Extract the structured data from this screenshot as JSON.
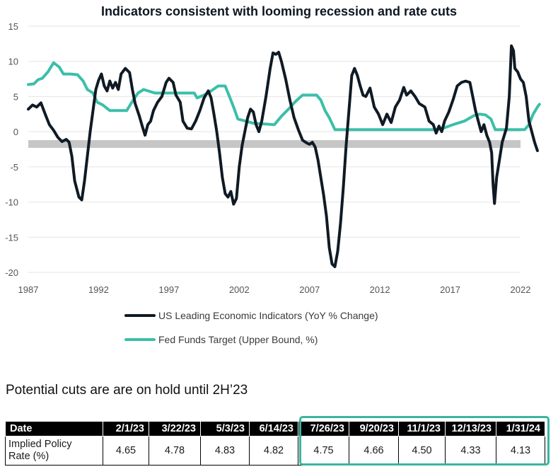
{
  "chart_data": {
    "type": "line",
    "title": "Indicators consistent with looming recession and rate cuts",
    "xlabel": "",
    "ylabel": "",
    "xlim": [
      1987,
      2022
    ],
    "ylim": [
      -20,
      15
    ],
    "x_ticks": [
      "1987",
      "1992",
      "1997",
      "2002",
      "2007",
      "2012",
      "2017",
      "2022"
    ],
    "y_ticks": [
      "15",
      "10",
      "5",
      "0",
      "-5",
      "-10",
      "-15",
      "-20"
    ],
    "recession_band": [
      -2.3,
      -1.2
    ],
    "colors": {
      "lei": "#0f1a24",
      "fed": "#3bbfa8",
      "band": "#c6c6c6"
    },
    "series": [
      {
        "name": "US Leading Economic Indicators (YoY % Change)",
        "color": "#0f1a24",
        "points": [
          [
            1987.0,
            3.2
          ],
          [
            1987.3,
            3.8
          ],
          [
            1987.6,
            3.5
          ],
          [
            1987.9,
            4.1
          ],
          [
            1988.2,
            2.5
          ],
          [
            1988.5,
            1.0
          ],
          [
            1988.8,
            0.2
          ],
          [
            1989.1,
            -0.8
          ],
          [
            1989.4,
            -1.4
          ],
          [
            1989.7,
            -1.1
          ],
          [
            1989.9,
            -1.5
          ],
          [
            1990.1,
            -3.5
          ],
          [
            1990.3,
            -7.0
          ],
          [
            1990.6,
            -9.3
          ],
          [
            1990.8,
            -9.7
          ],
          [
            1991.0,
            -7.0
          ],
          [
            1991.2,
            -3.5
          ],
          [
            1991.4,
            0.0
          ],
          [
            1991.6,
            3.0
          ],
          [
            1991.8,
            6.0
          ],
          [
            1992.0,
            7.3
          ],
          [
            1992.2,
            8.2
          ],
          [
            1992.4,
            6.5
          ],
          [
            1992.6,
            5.8
          ],
          [
            1992.8,
            7.2
          ],
          [
            1993.0,
            6.2
          ],
          [
            1993.2,
            7.0
          ],
          [
            1993.4,
            6.0
          ],
          [
            1993.6,
            8.2
          ],
          [
            1993.9,
            9.0
          ],
          [
            1994.2,
            8.4
          ],
          [
            1994.4,
            6.0
          ],
          [
            1994.6,
            4.0
          ],
          [
            1994.9,
            2.2
          ],
          [
            1995.1,
            0.8
          ],
          [
            1995.3,
            -0.5
          ],
          [
            1995.5,
            1.0
          ],
          [
            1995.7,
            1.5
          ],
          [
            1995.9,
            3.0
          ],
          [
            1996.2,
            4.2
          ],
          [
            1996.5,
            5.0
          ],
          [
            1996.8,
            7.0
          ],
          [
            1997.0,
            7.6
          ],
          [
            1997.3,
            7.0
          ],
          [
            1997.5,
            5.2
          ],
          [
            1997.8,
            4.2
          ],
          [
            1998.0,
            1.5
          ],
          [
            1998.3,
            0.5
          ],
          [
            1998.6,
            0.4
          ],
          [
            1998.9,
            1.5
          ],
          [
            1999.2,
            3.0
          ],
          [
            1999.5,
            4.8
          ],
          [
            1999.8,
            5.8
          ],
          [
            2000.0,
            4.8
          ],
          [
            2000.2,
            2.5
          ],
          [
            2000.4,
            0.0
          ],
          [
            2000.6,
            -3.0
          ],
          [
            2000.8,
            -6.5
          ],
          [
            2001.0,
            -8.8
          ],
          [
            2001.2,
            -9.3
          ],
          [
            2001.4,
            -8.5
          ],
          [
            2001.6,
            -10.3
          ],
          [
            2001.8,
            -9.5
          ],
          [
            2002.0,
            -5.0
          ],
          [
            2002.2,
            -2.0
          ],
          [
            2002.4,
            0.0
          ],
          [
            2002.6,
            2.0
          ],
          [
            2002.8,
            3.2
          ],
          [
            2003.0,
            2.8
          ],
          [
            2003.2,
            1.0
          ],
          [
            2003.4,
            0.0
          ],
          [
            2003.6,
            1.5
          ],
          [
            2003.9,
            5.0
          ],
          [
            2004.2,
            9.0
          ],
          [
            2004.4,
            11.2
          ],
          [
            2004.6,
            11.0
          ],
          [
            2004.8,
            11.3
          ],
          [
            2005.0,
            10.0
          ],
          [
            2005.3,
            7.5
          ],
          [
            2005.6,
            4.5
          ],
          [
            2005.9,
            2.0
          ],
          [
            2006.2,
            0.3
          ],
          [
            2006.5,
            -1.2
          ],
          [
            2006.8,
            -1.6
          ],
          [
            2007.0,
            -1.8
          ],
          [
            2007.2,
            -1.5
          ],
          [
            2007.4,
            -2.2
          ],
          [
            2007.6,
            -4.0
          ],
          [
            2007.8,
            -6.5
          ],
          [
            2008.0,
            -9.0
          ],
          [
            2008.2,
            -12.0
          ],
          [
            2008.4,
            -16.5
          ],
          [
            2008.6,
            -18.8
          ],
          [
            2008.8,
            -19.2
          ],
          [
            2009.0,
            -17.0
          ],
          [
            2009.2,
            -13.0
          ],
          [
            2009.4,
            -8.0
          ],
          [
            2009.6,
            -2.0
          ],
          [
            2009.8,
            3.0
          ],
          [
            2010.0,
            8.0
          ],
          [
            2010.2,
            9.0
          ],
          [
            2010.4,
            8.0
          ],
          [
            2010.6,
            6.5
          ],
          [
            2010.8,
            5.2
          ],
          [
            2011.0,
            5.0
          ],
          [
            2011.3,
            6.2
          ],
          [
            2011.6,
            3.5
          ],
          [
            2011.9,
            2.5
          ],
          [
            2012.2,
            1.0
          ],
          [
            2012.5,
            2.5
          ],
          [
            2012.8,
            1.3
          ],
          [
            2013.1,
            3.5
          ],
          [
            2013.4,
            4.5
          ],
          [
            2013.7,
            6.3
          ],
          [
            2013.9,
            5.2
          ],
          [
            2014.2,
            5.8
          ],
          [
            2014.5,
            5.0
          ],
          [
            2014.8,
            4.0
          ],
          [
            2015.2,
            3.5
          ],
          [
            2015.5,
            1.5
          ],
          [
            2015.8,
            1.0
          ],
          [
            2016.0,
            -0.2
          ],
          [
            2016.2,
            0.8
          ],
          [
            2016.4,
            0.0
          ],
          [
            2016.6,
            1.5
          ],
          [
            2016.9,
            2.8
          ],
          [
            2017.2,
            4.5
          ],
          [
            2017.5,
            6.5
          ],
          [
            2017.8,
            7.0
          ],
          [
            2018.1,
            7.2
          ],
          [
            2018.4,
            7.0
          ],
          [
            2018.6,
            5.0
          ],
          [
            2018.8,
            3.0
          ],
          [
            2019.0,
            1.5
          ],
          [
            2019.2,
            0.0
          ],
          [
            2019.4,
            1.0
          ],
          [
            2019.6,
            -0.5
          ],
          [
            2019.8,
            -1.5
          ],
          [
            2019.95,
            -3.0
          ],
          [
            2020.05,
            -7.5
          ],
          [
            2020.15,
            -10.2
          ],
          [
            2020.3,
            -6.5
          ],
          [
            2020.5,
            -4.0
          ],
          [
            2020.7,
            -1.5
          ],
          [
            2021.0,
            0.5
          ],
          [
            2021.2,
            5.0
          ],
          [
            2021.35,
            12.2
          ],
          [
            2021.5,
            11.5
          ],
          [
            2021.6,
            9.0
          ],
          [
            2021.8,
            8.5
          ],
          [
            2022.0,
            7.5
          ],
          [
            2022.2,
            7.0
          ],
          [
            2022.4,
            5.0
          ],
          [
            2022.6,
            1.5
          ],
          [
            2022.8,
            0.0
          ],
          [
            2023.0,
            -1.5
          ],
          [
            2023.2,
            -2.7
          ]
        ]
      },
      {
        "name": "Fed Funds Target (Upper Bound, %)",
        "color": "#3bbfa8",
        "points": [
          [
            1987.0,
            6.7
          ],
          [
            1987.4,
            6.8
          ],
          [
            1987.7,
            7.4
          ],
          [
            1988.0,
            7.6
          ],
          [
            1988.4,
            8.5
          ],
          [
            1988.8,
            9.8
          ],
          [
            1989.2,
            9.2
          ],
          [
            1989.5,
            8.2
          ],
          [
            1990.0,
            8.2
          ],
          [
            1990.5,
            8.1
          ],
          [
            1990.9,
            7.2
          ],
          [
            1991.2,
            6.0
          ],
          [
            1991.6,
            5.5
          ],
          [
            1991.9,
            4.2
          ],
          [
            1992.3,
            3.8
          ],
          [
            1992.8,
            3.0
          ],
          [
            1994.0,
            3.0
          ],
          [
            1994.3,
            4.0
          ],
          [
            1994.8,
            5.5
          ],
          [
            1995.2,
            6.0
          ],
          [
            1996.0,
            5.5
          ],
          [
            1997.5,
            5.5
          ],
          [
            1998.8,
            5.5
          ],
          [
            1999.0,
            4.8
          ],
          [
            1999.5,
            5.2
          ],
          [
            2000.0,
            5.8
          ],
          [
            2000.5,
            6.5
          ],
          [
            2001.0,
            6.5
          ],
          [
            2001.3,
            5.0
          ],
          [
            2001.6,
            3.5
          ],
          [
            2001.9,
            1.8
          ],
          [
            2003.0,
            1.2
          ],
          [
            2004.5,
            1.0
          ],
          [
            2005.0,
            2.2
          ],
          [
            2005.5,
            3.2
          ],
          [
            2006.0,
            4.3
          ],
          [
            2006.5,
            5.2
          ],
          [
            2007.5,
            5.2
          ],
          [
            2007.8,
            4.5
          ],
          [
            2008.1,
            3.0
          ],
          [
            2008.4,
            2.0
          ],
          [
            2008.8,
            0.3
          ],
          [
            2015.9,
            0.3
          ],
          [
            2016.5,
            0.5
          ],
          [
            2017.2,
            1.0
          ],
          [
            2018.0,
            1.5
          ],
          [
            2018.7,
            2.3
          ],
          [
            2019.1,
            2.5
          ],
          [
            2019.5,
            2.4
          ],
          [
            2019.9,
            1.8
          ],
          [
            2020.2,
            0.3
          ],
          [
            2022.3,
            0.3
          ],
          [
            2022.6,
            1.0
          ],
          [
            2022.9,
            2.5
          ],
          [
            2023.2,
            3.5
          ],
          [
            2023.35,
            3.9
          ]
        ]
      }
    ]
  },
  "legend": {
    "lei": "US Leading Economic Indicators (YoY % Change)",
    "fed": "Fed Funds Target (Upper Bound, %)"
  },
  "table": {
    "title": "Potential cuts are are on hold until 2H’23",
    "header_label": "Date",
    "row_label_line1": "Implied Policy",
    "row_label_line2": "Rate (%)",
    "dates": [
      "2/1/23",
      "3/22/23",
      "5/3/23",
      "6/14/23",
      "7/26/23",
      "9/20/23",
      "11/1/23",
      "12/13/23",
      "1/31/24"
    ],
    "rates": [
      "4.65",
      "4.78",
      "4.83",
      "4.82",
      "4.75",
      "4.66",
      "4.50",
      "4.33",
      "4.13"
    ],
    "highlight_color": "#3ab5a0"
  }
}
